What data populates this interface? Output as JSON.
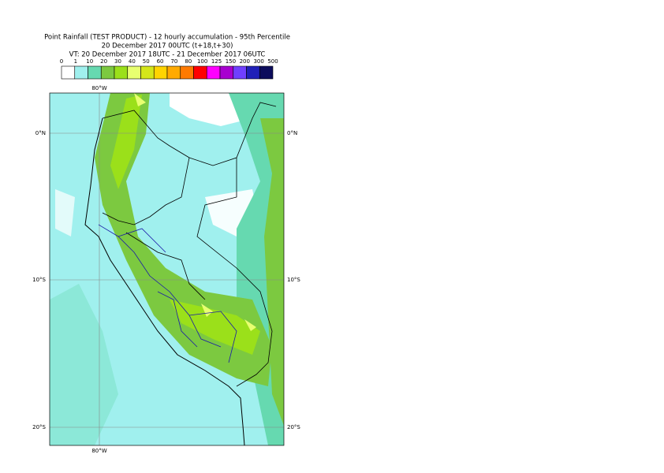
{
  "header": {
    "title": "Point Rainfall (TEST PRODUCT) - 12 hourly accumulation - 95th Percentile",
    "run": "20 December 2017 00UTC (t+18,t+30)",
    "validity": "VT: 20 December 2017 18UTC - 21 December 2017 06UTC"
  },
  "legend": {
    "labels": [
      "0",
      "1",
      "10",
      "20",
      "30",
      "40",
      "50",
      "60",
      "70",
      "80",
      "100",
      "125",
      "150",
      "200",
      "300",
      "500"
    ],
    "colors": [
      "#ffffff",
      "#a0f0ee",
      "#66d9b0",
      "#7cc940",
      "#9be01a",
      "#e8ff70",
      "#d4e619",
      "#ffd400",
      "#ffaa00",
      "#ff7a00",
      "#ff0000",
      "#ff00ff",
      "#a800d0",
      "#7040ff",
      "#2020b8",
      "#0c0c5c"
    ]
  },
  "map": {
    "lon_label": "80°W",
    "lat_labels": [
      "0°N",
      "10°S",
      "20°S"
    ]
  }
}
